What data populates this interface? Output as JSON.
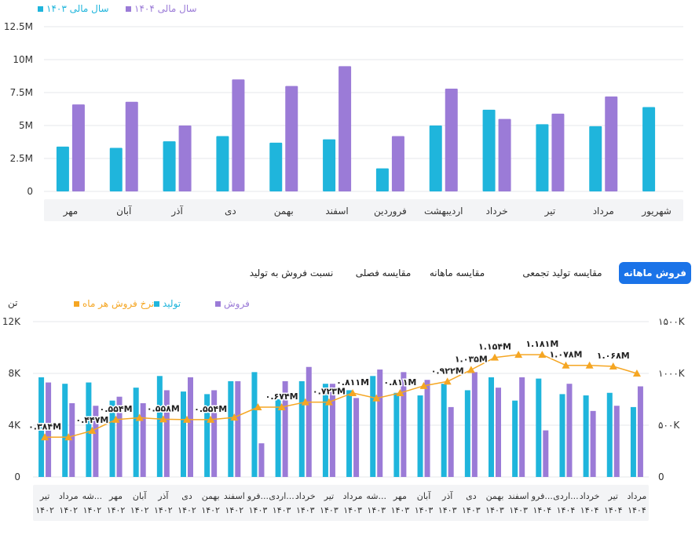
{
  "colors": {
    "accent": "#1a73e8",
    "teal": "#1fb5dc",
    "purple": "#9b7bd7",
    "orange": "#f5a623",
    "grid": "#e5e7eb",
    "label": "#333333"
  },
  "chart_data": [
    {
      "type": "bar",
      "legend": [
        "سال مالی ۱۴۰۴",
        "سال مالی ۱۴۰۳"
      ],
      "legend_position": "top-left",
      "categories": [
        "مهر",
        "آبان",
        "آذر",
        "دی",
        "بهمن",
        "اسفند",
        "فروردین",
        "اردیبهشت",
        "خرداد",
        "تیر",
        "مرداد",
        "شهریور"
      ],
      "series": [
        {
          "name": "سال مالی ۱۴۰۳",
          "color": "#1fb5dc",
          "values": [
            3.4,
            3.3,
            3.8,
            4.2,
            3.7,
            3.95,
            1.75,
            5.0,
            6.2,
            5.1,
            4.95,
            6.4
          ]
        },
        {
          "name": "سال مالی ۱۴۰۴",
          "color": "#9b7bd7",
          "values": [
            6.6,
            6.8,
            5.0,
            8.5,
            8.0,
            9.5,
            4.2,
            7.8,
            5.5,
            5.9,
            7.2,
            null
          ]
        }
      ],
      "yticks": [
        "0",
        "2.5M",
        "5M",
        "7.5M",
        "10M",
        "12.5M"
      ],
      "ylim": [
        0,
        12.5
      ],
      "grid": true
    },
    {
      "type": "bar+line",
      "legend": [
        "فروش",
        "تولید",
        "نرخ فروش هر ماه"
      ],
      "legend_position": "top-left",
      "left_unit": "تن",
      "categories": [
        [
          "تیر",
          "۱۴۰۲"
        ],
        [
          "مرداد",
          "۱۴۰۲"
        ],
        [
          "شه...",
          "۱۴۰۲"
        ],
        [
          "مهر",
          "۱۴۰۲"
        ],
        [
          "آبان",
          "۱۴۰۲"
        ],
        [
          "آذر",
          "۱۴۰۲"
        ],
        [
          "دی",
          "۱۴۰۲"
        ],
        [
          "بهمن",
          "۱۴۰۲"
        ],
        [
          "اسفند",
          "۱۴۰۲"
        ],
        [
          "فرو...",
          "۱۴۰۳"
        ],
        [
          "اردی...",
          "۱۴۰۳"
        ],
        [
          "خرداد",
          "۱۴۰۳"
        ],
        [
          "تیر",
          "۱۴۰۳"
        ],
        [
          "مرداد",
          "۱۴۰۳"
        ],
        [
          "شه...",
          "۱۴۰۳"
        ],
        [
          "مهر",
          "۱۴۰۳"
        ],
        [
          "آبان",
          "۱۴۰۳"
        ],
        [
          "آذر",
          "۱۴۰۳"
        ],
        [
          "دی",
          "۱۴۰۳"
        ],
        [
          "بهمن",
          "۱۴۰۳"
        ],
        [
          "اسفند",
          "۱۴۰۳"
        ],
        [
          "فرو...",
          "۱۴۰۴"
        ],
        [
          "اردی...",
          "۱۴۰۴"
        ],
        [
          "خرداد",
          "۱۴۰۴"
        ],
        [
          "تیر",
          "۱۴۰۴"
        ],
        [
          "مرداد",
          "۱۴۰۴"
        ]
      ],
      "series": [
        {
          "name": "تولید",
          "color": "#1fb5dc",
          "axis": "left",
          "values": [
            7.7,
            7.2,
            7.3,
            5.9,
            6.9,
            7.8,
            6.6,
            6.4,
            7.4,
            8.1,
            6.0,
            7.4,
            7.2,
            6.7,
            7.8,
            6.5,
            6.3,
            7.2,
            6.7,
            7.7,
            5.9,
            7.6,
            6.4,
            6.3,
            6.5,
            5.4
          ]
        },
        {
          "name": "فروش",
          "color": "#9b7bd7",
          "axis": "left",
          "values": [
            7.3,
            5.7,
            5.5,
            6.2,
            5.7,
            6.7,
            7.7,
            6.7,
            7.4,
            2.6,
            7.4,
            8.5,
            7.2,
            6.1,
            8.3,
            8.1,
            7.5,
            5.4,
            8.1,
            6.9,
            7.7,
            3.6,
            7.2,
            5.1,
            5.5,
            7.0
          ]
        },
        {
          "name": "نرخ فروش هر ماه",
          "color": "#f5a623",
          "axis": "right",
          "values": [
            384,
            384,
            447,
            554,
            572,
            558,
            554,
            554,
            575,
            674,
            674,
            723,
            723,
            811,
            760,
            811,
            880,
            922,
            1035,
            1154,
            1181,
            1181,
            1078,
            1078,
            1068,
            1000
          ]
        }
      ],
      "point_labels": [
        {
          "index": 0,
          "text": "۰.۳۸۴M"
        },
        {
          "index": 2,
          "text": "۰.۴۴۷M"
        },
        {
          "index": 3,
          "text": "۰.۵۵۴M"
        },
        {
          "index": 5,
          "text": "۰.۵۵۸M"
        },
        {
          "index": 7,
          "text": "۰.۵۵۴M"
        },
        {
          "index": 10,
          "text": "۰.۶۷۴M"
        },
        {
          "index": 12,
          "text": "۰.۷۲۳M"
        },
        {
          "index": 13,
          "text": "۰.۸۱۱M"
        },
        {
          "index": 15,
          "text": "۰.۸۱۱M"
        },
        {
          "index": 17,
          "text": "۰.۹۲۲M"
        },
        {
          "index": 18,
          "text": "۱.۰۳۵M"
        },
        {
          "index": 19,
          "text": "۱.۱۵۴M"
        },
        {
          "index": 21,
          "text": "۱.۱۸۱M"
        },
        {
          "index": 22,
          "text": "۱.۰۷۸M"
        },
        {
          "index": 24,
          "text": "۱.۰۶۸M"
        }
      ],
      "left_ticks": [
        "0",
        "4K",
        "8K",
        "12K"
      ],
      "left_ylim": [
        0,
        12
      ],
      "right_ticks": [
        "0",
        "۵۰۰K",
        "۱۰۰۰K",
        "۱۵۰۰K"
      ],
      "right_ylim": [
        0,
        1500
      ],
      "grid": true
    }
  ],
  "tabs": [
    {
      "label": "فروش ماهانه",
      "active": true
    },
    {
      "label": "مقایسه تولید تجمعی",
      "active": false
    },
    {
      "label": "مقایسه ماهانه",
      "active": false
    },
    {
      "label": "مقایسه فصلی",
      "active": false
    },
    {
      "label": "نسبت فروش به تولید",
      "active": false
    }
  ]
}
